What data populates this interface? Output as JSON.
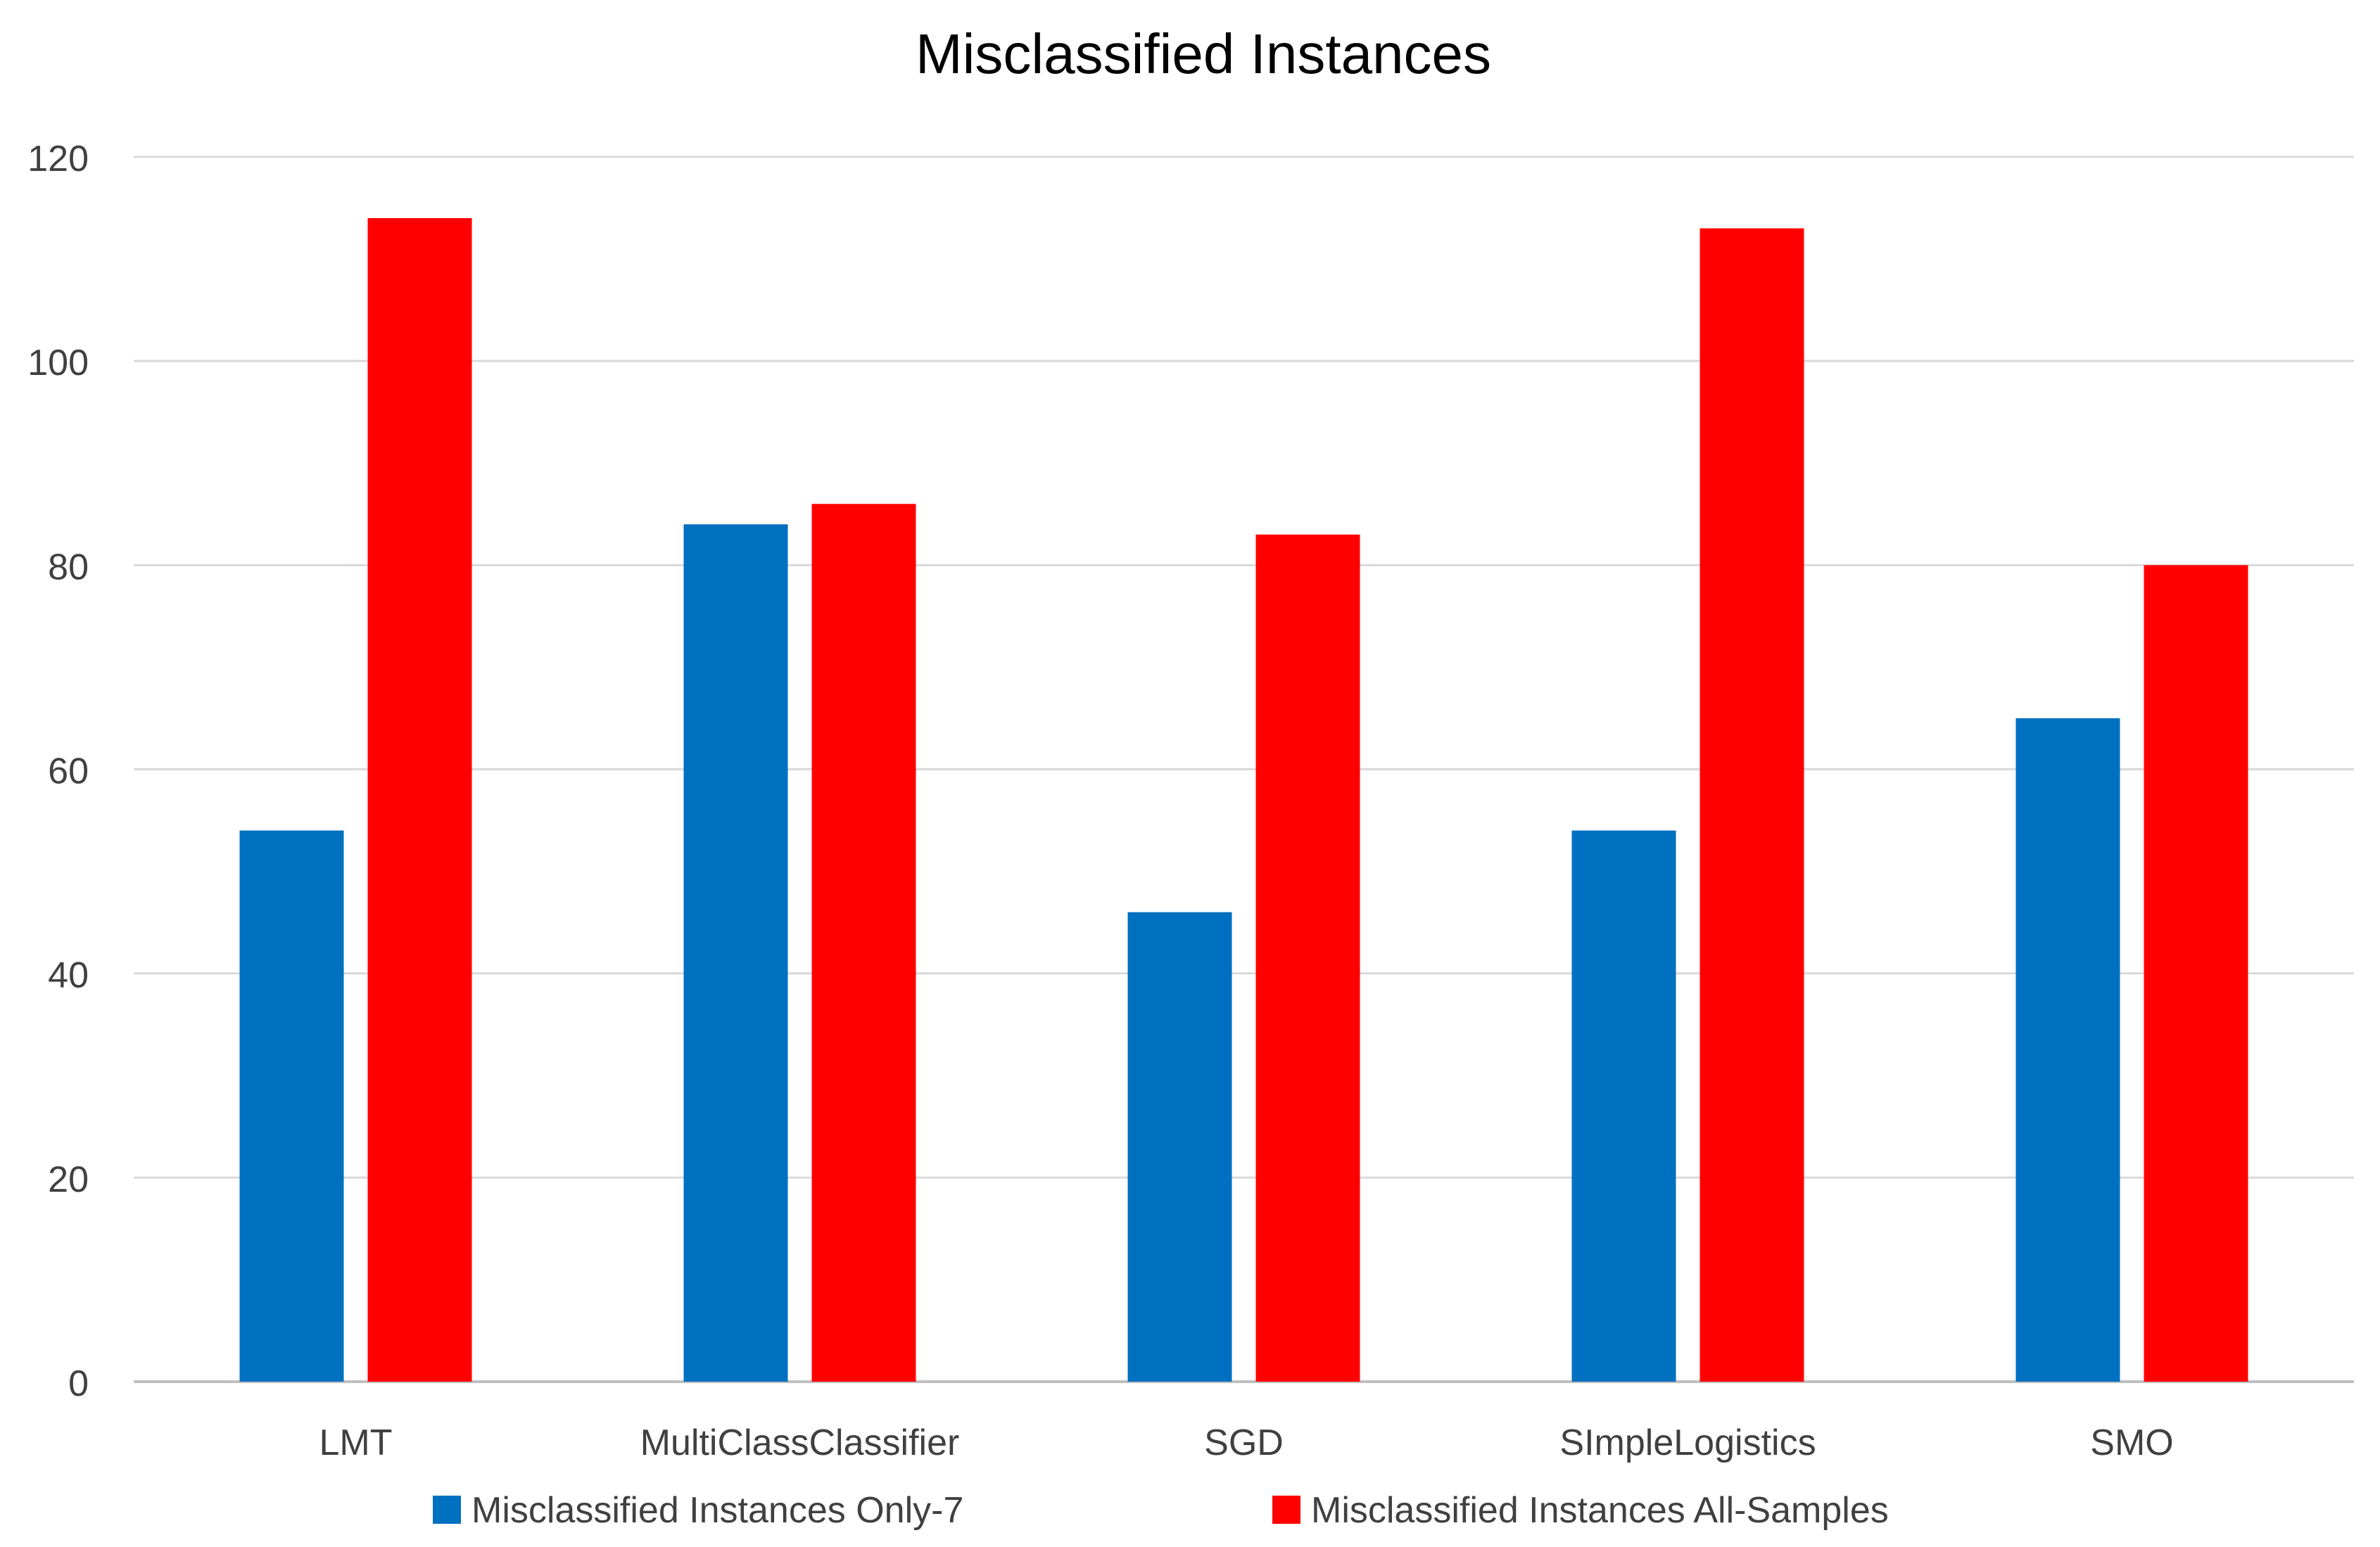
{
  "chart_data": {
    "type": "bar",
    "title": "Misclassified Instances",
    "xlabel": "",
    "ylabel": "",
    "categories": [
      "LMT",
      "MultiClassClassifier",
      "SGD",
      "SImpleLogistics",
      "SMO"
    ],
    "series": [
      {
        "name": "Misclassified Instances Only-7",
        "color": "#0070C0",
        "values": [
          54,
          84,
          46,
          54,
          65
        ]
      },
      {
        "name": "Misclassified Instances All-Samples",
        "color": "#FF0000",
        "values": [
          114,
          86,
          83,
          113,
          80
        ]
      }
    ],
    "ylim": [
      0,
      120
    ],
    "yticks": [
      0,
      20,
      40,
      60,
      80,
      100,
      120
    ],
    "grid": true,
    "legend_position": "bottom"
  }
}
